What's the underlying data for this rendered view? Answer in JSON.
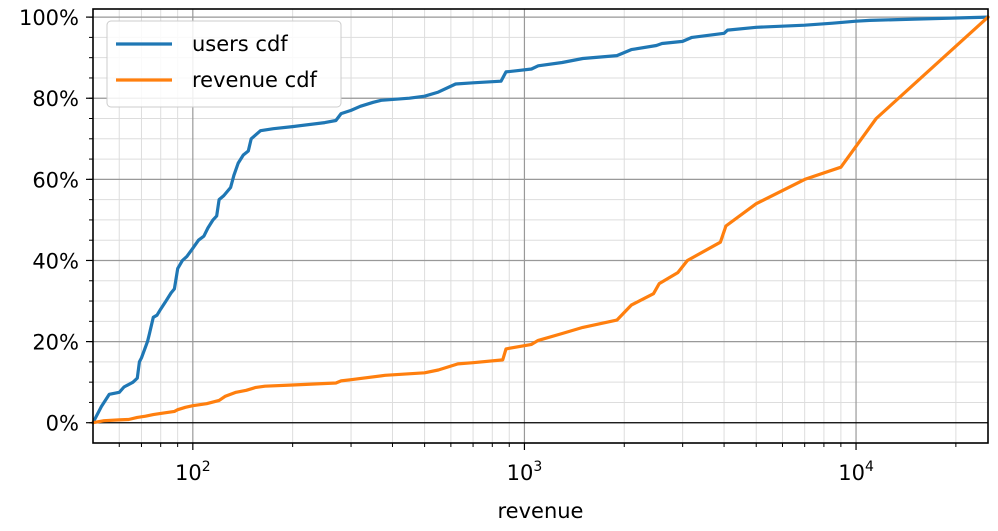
{
  "chart_data": {
    "type": "line",
    "title": "",
    "xlabel": "revenue",
    "ylabel": "",
    "xscale": "log",
    "xlim": [
      50,
      25000
    ],
    "ylim": [
      -0.05,
      1.02
    ],
    "grid": "major and minor",
    "legend_position": "top-left",
    "x_ticks": [
      {
        "value": 100,
        "base": "10",
        "exp": "2"
      },
      {
        "value": 1000,
        "base": "10",
        "exp": "3"
      },
      {
        "value": 10000,
        "base": "10",
        "exp": "4"
      }
    ],
    "y_ticks": [
      {
        "value": 0,
        "label": "0%"
      },
      {
        "value": 0.2,
        "label": "20%"
      },
      {
        "value": 0.4,
        "label": "40%"
      },
      {
        "value": 0.6,
        "label": "60%"
      },
      {
        "value": 0.8,
        "label": "80%"
      },
      {
        "value": 1.0,
        "label": "100%"
      }
    ],
    "series": [
      {
        "name": "users cdf",
        "color": "#1f77b4",
        "points": [
          [
            50,
            0.0
          ],
          [
            53,
            0.04
          ],
          [
            56,
            0.07
          ],
          [
            60,
            0.075
          ],
          [
            62,
            0.088
          ],
          [
            66,
            0.1
          ],
          [
            68,
            0.11
          ],
          [
            69,
            0.15
          ],
          [
            70,
            0.16
          ],
          [
            73,
            0.2
          ],
          [
            74,
            0.22
          ],
          [
            76,
            0.26
          ],
          [
            78,
            0.265
          ],
          [
            80,
            0.28
          ],
          [
            83,
            0.3
          ],
          [
            86,
            0.32
          ],
          [
            88,
            0.33
          ],
          [
            90,
            0.38
          ],
          [
            93,
            0.4
          ],
          [
            96,
            0.41
          ],
          [
            100,
            0.43
          ],
          [
            104,
            0.45
          ],
          [
            108,
            0.46
          ],
          [
            111,
            0.48
          ],
          [
            115,
            0.5
          ],
          [
            118,
            0.51
          ],
          [
            120,
            0.55
          ],
          [
            124,
            0.56
          ],
          [
            130,
            0.58
          ],
          [
            133,
            0.61
          ],
          [
            137,
            0.64
          ],
          [
            142,
            0.66
          ],
          [
            147,
            0.67
          ],
          [
            150,
            0.7
          ],
          [
            155,
            0.71
          ],
          [
            160,
            0.72
          ],
          [
            175,
            0.725
          ],
          [
            200,
            0.73
          ],
          [
            250,
            0.74
          ],
          [
            270,
            0.745
          ],
          [
            280,
            0.762
          ],
          [
            300,
            0.77
          ],
          [
            320,
            0.78
          ],
          [
            350,
            0.79
          ],
          [
            370,
            0.795
          ],
          [
            450,
            0.8
          ],
          [
            500,
            0.805
          ],
          [
            550,
            0.815
          ],
          [
            620,
            0.835
          ],
          [
            700,
            0.838
          ],
          [
            850,
            0.842
          ],
          [
            880,
            0.865
          ],
          [
            950,
            0.868
          ],
          [
            1050,
            0.872
          ],
          [
            1100,
            0.88
          ],
          [
            1300,
            0.888
          ],
          [
            1500,
            0.898
          ],
          [
            1900,
            0.905
          ],
          [
            2100,
            0.92
          ],
          [
            2500,
            0.93
          ],
          [
            2600,
            0.935
          ],
          [
            3000,
            0.94
          ],
          [
            3200,
            0.95
          ],
          [
            4000,
            0.96
          ],
          [
            4100,
            0.968
          ],
          [
            5000,
            0.975
          ],
          [
            7000,
            0.98
          ],
          [
            8500,
            0.985
          ],
          [
            10000,
            0.99
          ],
          [
            11000,
            0.992
          ],
          [
            15000,
            0.995
          ],
          [
            25000,
            1.0
          ]
        ]
      },
      {
        "name": "revenue cdf",
        "color": "#ff7f0e",
        "points": [
          [
            50,
            0.0
          ],
          [
            54,
            0.005
          ],
          [
            60,
            0.007
          ],
          [
            64,
            0.008
          ],
          [
            68,
            0.013
          ],
          [
            72,
            0.016
          ],
          [
            76,
            0.02
          ],
          [
            80,
            0.023
          ],
          [
            88,
            0.028
          ],
          [
            90,
            0.032
          ],
          [
            95,
            0.038
          ],
          [
            100,
            0.042
          ],
          [
            110,
            0.047
          ],
          [
            120,
            0.055
          ],
          [
            125,
            0.065
          ],
          [
            135,
            0.075
          ],
          [
            145,
            0.08
          ],
          [
            155,
            0.087
          ],
          [
            165,
            0.09
          ],
          [
            200,
            0.093
          ],
          [
            270,
            0.098
          ],
          [
            280,
            0.103
          ],
          [
            300,
            0.106
          ],
          [
            380,
            0.117
          ],
          [
            500,
            0.123
          ],
          [
            550,
            0.13
          ],
          [
            630,
            0.145
          ],
          [
            700,
            0.148
          ],
          [
            860,
            0.155
          ],
          [
            880,
            0.182
          ],
          [
            1050,
            0.193
          ],
          [
            1100,
            0.203
          ],
          [
            1300,
            0.22
          ],
          [
            1500,
            0.235
          ],
          [
            1900,
            0.253
          ],
          [
            2100,
            0.29
          ],
          [
            2450,
            0.318
          ],
          [
            2550,
            0.343
          ],
          [
            2900,
            0.37
          ],
          [
            3100,
            0.4
          ],
          [
            3900,
            0.445
          ],
          [
            4050,
            0.485
          ],
          [
            5000,
            0.54
          ],
          [
            7000,
            0.6
          ],
          [
            9000,
            0.63
          ],
          [
            11500,
            0.75
          ],
          [
            25000,
            1.0
          ]
        ]
      }
    ]
  }
}
